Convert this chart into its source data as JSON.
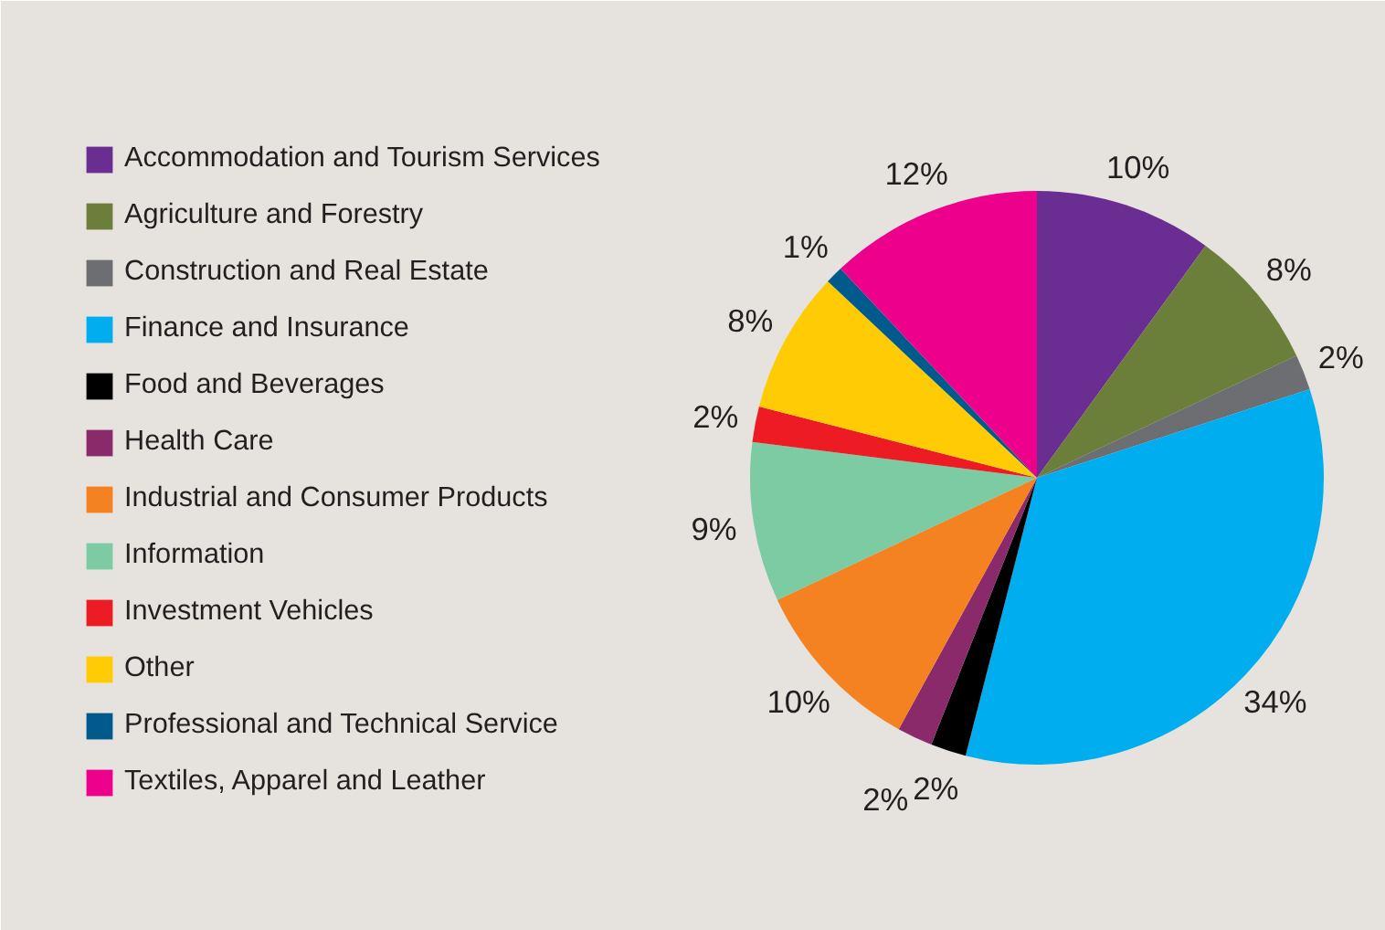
{
  "chart_data": {
    "type": "pie",
    "categories": [
      "Accommodation and Tourism Services",
      "Agriculture and Forestry",
      "Construction and Real Estate",
      "Finance and Insurance",
      "Food and Beverages",
      "Health Care",
      "Industrial and Consumer Products",
      "Information",
      "Investment Vehicles",
      "Other",
      "Professional and Technical Service",
      "Textiles, Apparel and Leather"
    ],
    "values": [
      10,
      8,
      2,
      34,
      2,
      2,
      10,
      9,
      2,
      8,
      1,
      12
    ],
    "value_labels": [
      "10%",
      "8%",
      "2%",
      "34%",
      "2%",
      "2%",
      "10%",
      "9%",
      "2%",
      "8%",
      "1%",
      "12%"
    ],
    "colors": [
      "#6a2d91",
      "#6b7f3a",
      "#6d6e71",
      "#00aeef",
      "#000000",
      "#8b2a6b",
      "#f58220",
      "#7ccba2",
      "#ed1c24",
      "#ffcb05",
      "#005b8c",
      "#ec008c"
    ],
    "legend": "left"
  }
}
